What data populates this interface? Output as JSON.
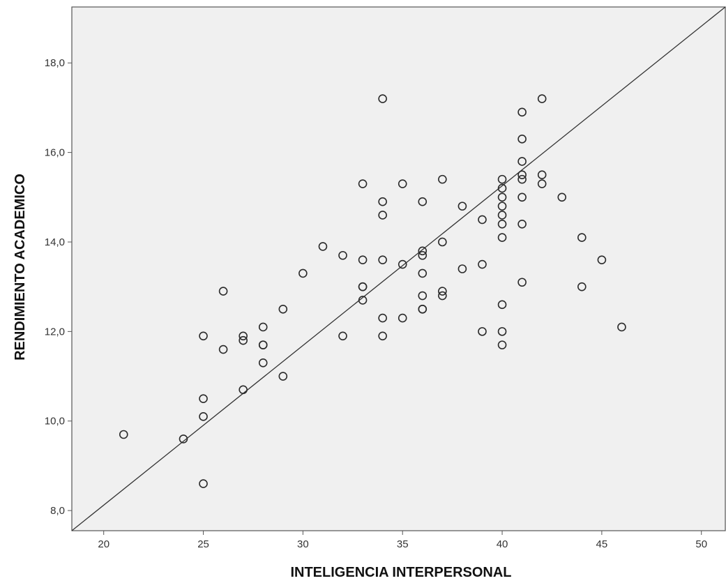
{
  "chart_data": {
    "type": "scatter",
    "title": "",
    "xlabel": "INTELIGENCIA INTERPERSONAL",
    "ylabel": "RENDIMIENTO ACADEMICO",
    "xlim": [
      18.4,
      51.2
    ],
    "ylim": [
      7.55,
      19.25
    ],
    "x_ticks": [
      20,
      25,
      30,
      35,
      40,
      45,
      50
    ],
    "x_tick_labels": [
      "20",
      "25",
      "30",
      "35",
      "40",
      "45",
      "50"
    ],
    "y_ticks": [
      8,
      10,
      12,
      14,
      16,
      18
    ],
    "y_tick_labels": [
      "8,0",
      "10,0",
      "12,0",
      "14,0",
      "16,0",
      "18,0"
    ],
    "grid": false,
    "plot_background": "#f0f0f0",
    "point_color": "#2a2a2a",
    "fit_line": {
      "type": "linear",
      "x": [
        18.4,
        51.2
      ],
      "y": [
        7.55,
        19.25
      ]
    },
    "series": [
      {
        "points": [
          [
            21,
            9.7
          ],
          [
            24,
            9.6
          ],
          [
            25,
            11.9
          ],
          [
            25,
            10.5
          ],
          [
            25,
            10.1
          ],
          [
            25,
            8.6
          ],
          [
            26,
            12.9
          ],
          [
            26,
            11.6
          ],
          [
            27,
            11.9
          ],
          [
            27,
            11.8
          ],
          [
            27,
            10.7
          ],
          [
            28,
            12.1
          ],
          [
            28,
            11.7
          ],
          [
            28,
            11.7
          ],
          [
            28,
            11.3
          ],
          [
            29,
            12.5
          ],
          [
            29,
            11.0
          ],
          [
            30,
            13.3
          ],
          [
            31,
            13.9
          ],
          [
            32,
            13.7
          ],
          [
            32,
            11.9
          ],
          [
            33,
            15.3
          ],
          [
            33,
            13.6
          ],
          [
            33,
            13.0
          ],
          [
            33,
            13.0
          ],
          [
            33,
            12.7
          ],
          [
            34,
            17.2
          ],
          [
            34,
            14.9
          ],
          [
            34,
            14.6
          ],
          [
            34,
            13.6
          ],
          [
            34,
            12.3
          ],
          [
            34,
            11.9
          ],
          [
            35,
            15.3
          ],
          [
            35,
            13.5
          ],
          [
            35,
            12.3
          ],
          [
            36,
            14.9
          ],
          [
            36,
            13.8
          ],
          [
            36,
            13.7
          ],
          [
            36,
            13.3
          ],
          [
            36,
            12.8
          ],
          [
            36,
            12.5
          ],
          [
            36,
            12.5
          ],
          [
            37,
            15.4
          ],
          [
            37,
            14.0
          ],
          [
            37,
            12.9
          ],
          [
            37,
            12.8
          ],
          [
            38,
            14.8
          ],
          [
            38,
            13.4
          ],
          [
            39,
            14.5
          ],
          [
            39,
            13.5
          ],
          [
            39,
            12.0
          ],
          [
            40,
            15.4
          ],
          [
            40,
            15.2
          ],
          [
            40,
            15.0
          ],
          [
            40,
            14.8
          ],
          [
            40,
            14.6
          ],
          [
            40,
            14.4
          ],
          [
            40,
            14.1
          ],
          [
            40,
            12.6
          ],
          [
            40,
            12.0
          ],
          [
            40,
            11.7
          ],
          [
            41,
            16.9
          ],
          [
            41,
            16.3
          ],
          [
            41,
            15.8
          ],
          [
            41,
            15.5
          ],
          [
            41,
            15.4
          ],
          [
            41,
            15.0
          ],
          [
            41,
            14.4
          ],
          [
            41,
            13.1
          ],
          [
            42,
            17.2
          ],
          [
            42,
            15.5
          ],
          [
            42,
            15.3
          ],
          [
            43,
            15.0
          ],
          [
            44,
            14.1
          ],
          [
            44,
            13.0
          ],
          [
            45,
            13.6
          ],
          [
            46,
            12.1
          ]
        ]
      }
    ]
  }
}
